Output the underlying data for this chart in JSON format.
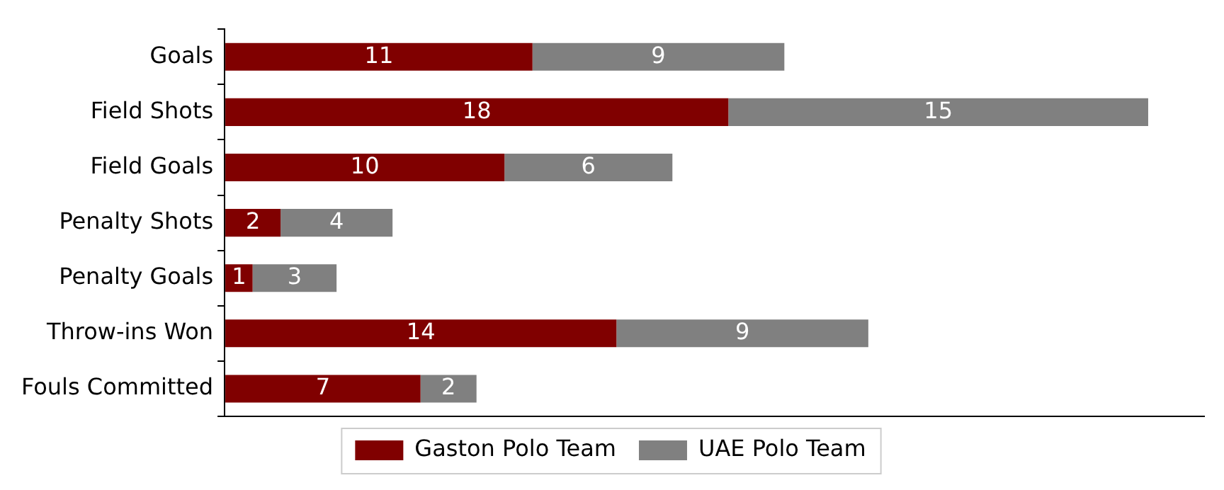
{
  "chart_data": {
    "type": "bar",
    "orientation": "horizontal",
    "stacked": true,
    "categories": [
      "Goals",
      "Field Shots",
      "Field Goals",
      "Penalty Shots",
      "Penalty Goals",
      "Throw-ins Won",
      "Fouls Committed"
    ],
    "series": [
      {
        "name": "Gaston Polo Team",
        "color": "#800000",
        "values": [
          11,
          18,
          10,
          2,
          1,
          14,
          7
        ]
      },
      {
        "name": "UAE Polo Team",
        "color": "#808080",
        "values": [
          9,
          15,
          6,
          4,
          3,
          9,
          2
        ]
      }
    ],
    "data_labels": true,
    "tick_labels": "y",
    "legend": "bottom",
    "grid": false
  }
}
